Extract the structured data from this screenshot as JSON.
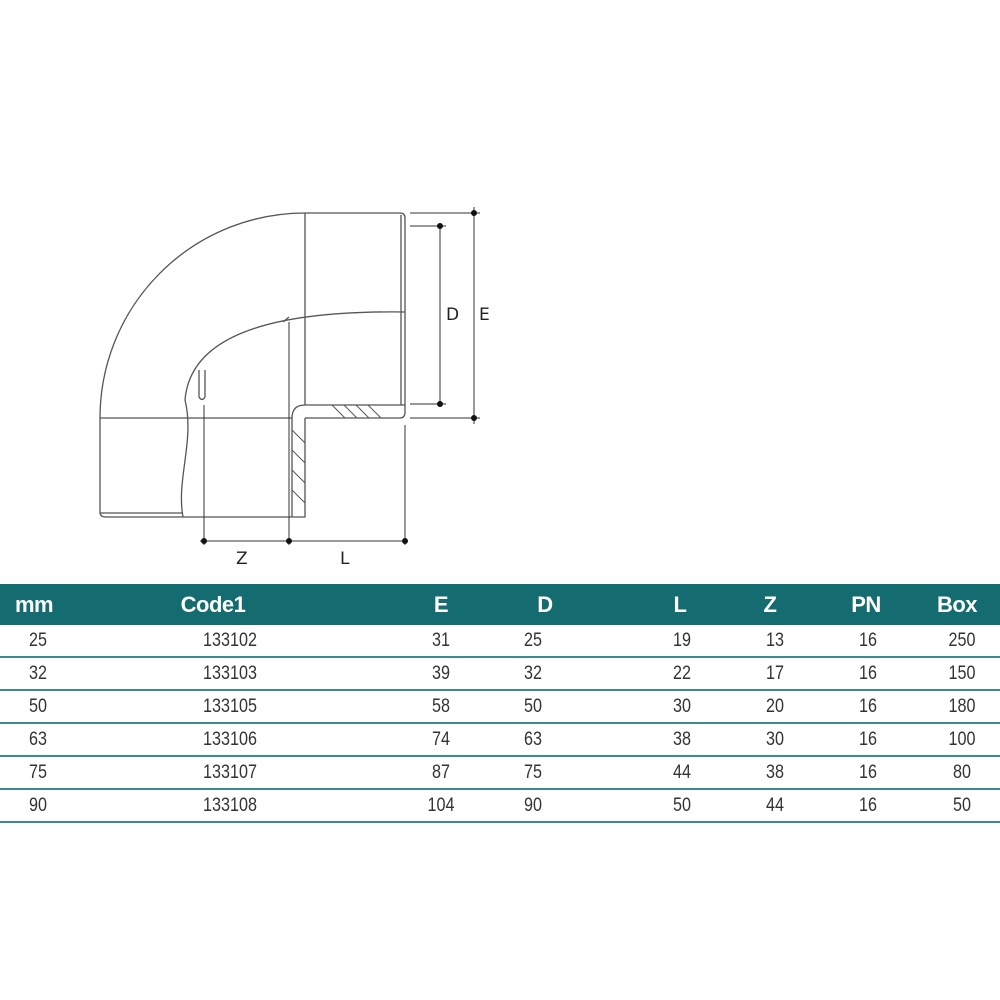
{
  "diagram": {
    "dimension_labels": {
      "D": "D",
      "E": "E",
      "Z": "Z",
      "L": "L"
    },
    "colors": {
      "header_bg": "#146b70",
      "row_rule": "#3d8a90",
      "line": "#555555"
    }
  },
  "table": {
    "headers": [
      "mm",
      "Code1",
      "E",
      "D",
      "L",
      "Z",
      "PN",
      "Box"
    ],
    "rows": [
      [
        "25",
        "133102",
        "31",
        "25",
        "19",
        "13",
        "16",
        "250"
      ],
      [
        "32",
        "133103",
        "39",
        "32",
        "22",
        "17",
        "16",
        "150"
      ],
      [
        "50",
        "133105",
        "58",
        "50",
        "30",
        "20",
        "16",
        "180"
      ],
      [
        "63",
        "133106",
        "74",
        "63",
        "38",
        "30",
        "16",
        "100"
      ],
      [
        "75",
        "133107",
        "87",
        "75",
        "44",
        "38",
        "16",
        "80"
      ],
      [
        "90",
        "133108",
        "104",
        "90",
        "50",
        "44",
        "16",
        "50"
      ]
    ]
  }
}
